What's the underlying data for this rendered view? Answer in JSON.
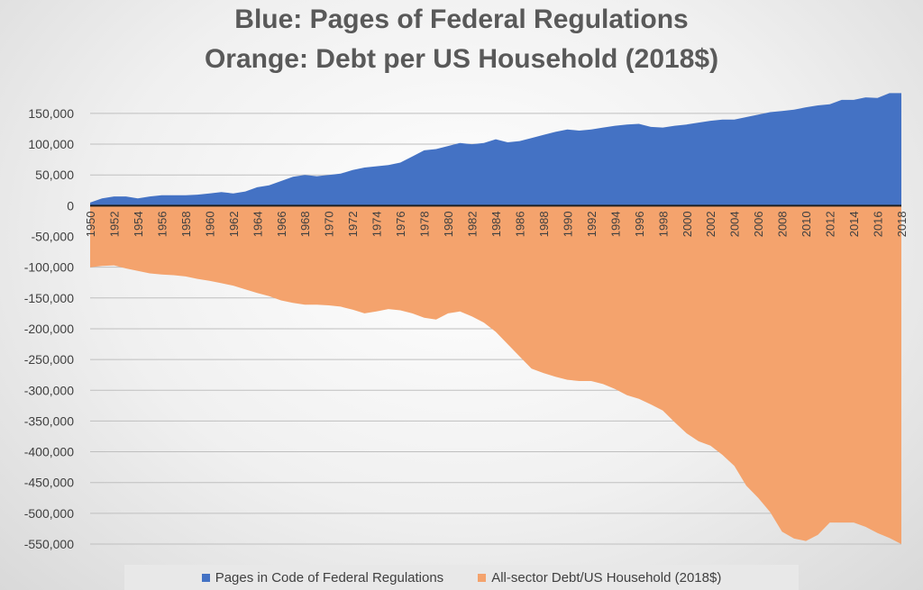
{
  "chart_data": {
    "type": "area",
    "title_lines": [
      "Blue: Pages of Federal Regulations",
      "Orange: Debt per US Household (2018$)"
    ],
    "x": [
      1950,
      1951,
      1952,
      1953,
      1954,
      1955,
      1956,
      1957,
      1958,
      1959,
      1960,
      1961,
      1962,
      1963,
      1964,
      1965,
      1966,
      1967,
      1968,
      1969,
      1970,
      1971,
      1972,
      1973,
      1974,
      1975,
      1976,
      1977,
      1978,
      1979,
      1980,
      1981,
      1982,
      1983,
      1984,
      1985,
      1986,
      1987,
      1988,
      1989,
      1990,
      1991,
      1992,
      1993,
      1994,
      1995,
      1996,
      1997,
      1998,
      1999,
      2000,
      2001,
      2002,
      2003,
      2004,
      2005,
      2006,
      2007,
      2008,
      2009,
      2010,
      2011,
      2012,
      2013,
      2014,
      2015,
      2016,
      2017,
      2018
    ],
    "xtick_labels": [
      "1950",
      "1952",
      "1954",
      "1956",
      "1958",
      "1960",
      "1962",
      "1964",
      "1966",
      "1968",
      "1970",
      "1972",
      "1974",
      "1976",
      "1978",
      "1980",
      "1982",
      "1984",
      "1986",
      "1988",
      "1990",
      "1992",
      "1994",
      "1996",
      "1998",
      "2000",
      "2002",
      "2004",
      "2006",
      "2008",
      "2010",
      "2012",
      "2014",
      "2016",
      "2018"
    ],
    "yticks": [
      150000,
      100000,
      50000,
      0,
      -50000,
      -100000,
      -150000,
      -200000,
      -250000,
      -300000,
      -350000,
      -400000,
      -450000,
      -500000,
      -550000
    ],
    "ytick_labels": [
      "150,000",
      "100,000",
      "50,000",
      "0",
      "-50,000",
      "-100,000",
      "-150,000",
      "-200,000",
      "-250,000",
      "-300,000",
      "-350,000",
      "-400,000",
      "-450,000",
      "-500,000",
      "-550,000"
    ],
    "ylim": [
      -550000,
      185000
    ],
    "grid": true,
    "legend_position": "bottom",
    "series": [
      {
        "name": "Pages in Code of Federal Regulations",
        "color": "#4472c4",
        "values": [
          5000,
          12000,
          15000,
          15000,
          12000,
          15000,
          17000,
          17000,
          17000,
          18000,
          20000,
          22000,
          20000,
          23000,
          30000,
          33000,
          40000,
          47000,
          50000,
          48000,
          50000,
          52000,
          58000,
          62000,
          64000,
          66000,
          70000,
          80000,
          90000,
          92000,
          97000,
          102000,
          100000,
          102000,
          108000,
          103000,
          105000,
          110000,
          115000,
          120000,
          124000,
          122000,
          124000,
          127000,
          130000,
          132000,
          133000,
          128000,
          127000,
          130000,
          132000,
          135000,
          138000,
          140000,
          140000,
          144000,
          148000,
          152000,
          154000,
          156000,
          160000,
          163000,
          165000,
          172000,
          172000,
          176000,
          175000,
          183000,
          183000
        ]
      },
      {
        "name": "All-sector Debt/US Household (2018$)",
        "color": "#f4a36d",
        "values": [
          -100000,
          -98000,
          -97000,
          -102000,
          -106000,
          -110000,
          -112000,
          -113000,
          -115000,
          -119000,
          -122000,
          -126000,
          -130000,
          -136000,
          -142000,
          -147000,
          -154000,
          -158000,
          -161000,
          -161000,
          -162000,
          -164000,
          -169000,
          -175000,
          -172000,
          -168000,
          -170000,
          -175000,
          -182000,
          -185000,
          -175000,
          -172000,
          -180000,
          -190000,
          -205000,
          -225000,
          -245000,
          -265000,
          -272000,
          -278000,
          -283000,
          -285000,
          -285000,
          -290000,
          -298000,
          -308000,
          -314000,
          -323000,
          -333000,
          -352000,
          -370000,
          -383000,
          -390000,
          -405000,
          -423000,
          -455000,
          -475000,
          -498000,
          -530000,
          -541000,
          -545000,
          -535000,
          -515000,
          -515000,
          -515000,
          -522000,
          -532000,
          -540000,
          -550000
        ]
      }
    ]
  }
}
